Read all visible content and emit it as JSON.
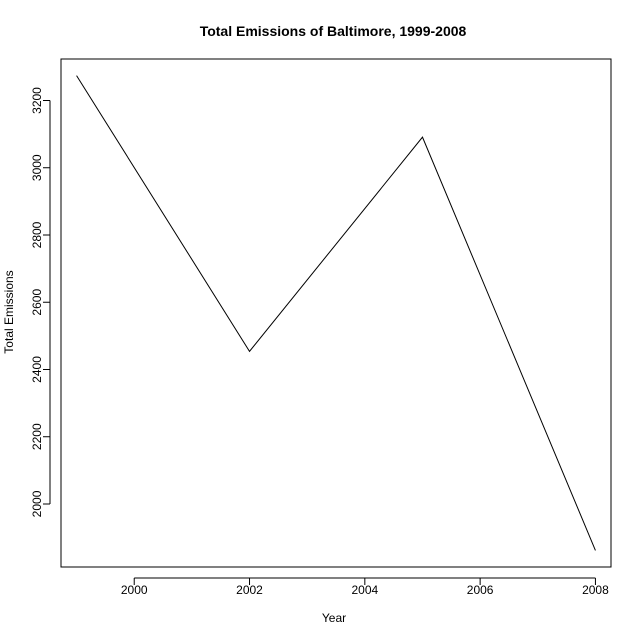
{
  "chart_data": {
    "type": "line",
    "title": "Total Emissions of Baltimore, 1999-2008",
    "xlabel": "Year",
    "ylabel": "Total Emissions",
    "x": [
      1999,
      2002,
      2005,
      2008
    ],
    "series": [
      {
        "values": [
          3274,
          2454,
          3091,
          1862
        ]
      }
    ],
    "xlim": [
      1998.73,
      2008.27
    ],
    "ylim": [
      1812.6,
      3323.4
    ],
    "xticks": [
      2000,
      2002,
      2004,
      2006,
      2008
    ],
    "yticks": [
      2000,
      2200,
      2400,
      2600,
      2800,
      3000,
      3200
    ],
    "xtick_labels": [
      "2000",
      "2002",
      "2004",
      "2006",
      "2008"
    ],
    "ytick_labels": [
      "2000",
      "2200",
      "2400",
      "2600",
      "2800",
      "3000",
      "3200"
    ],
    "grid": false,
    "line_color": "#000000"
  }
}
